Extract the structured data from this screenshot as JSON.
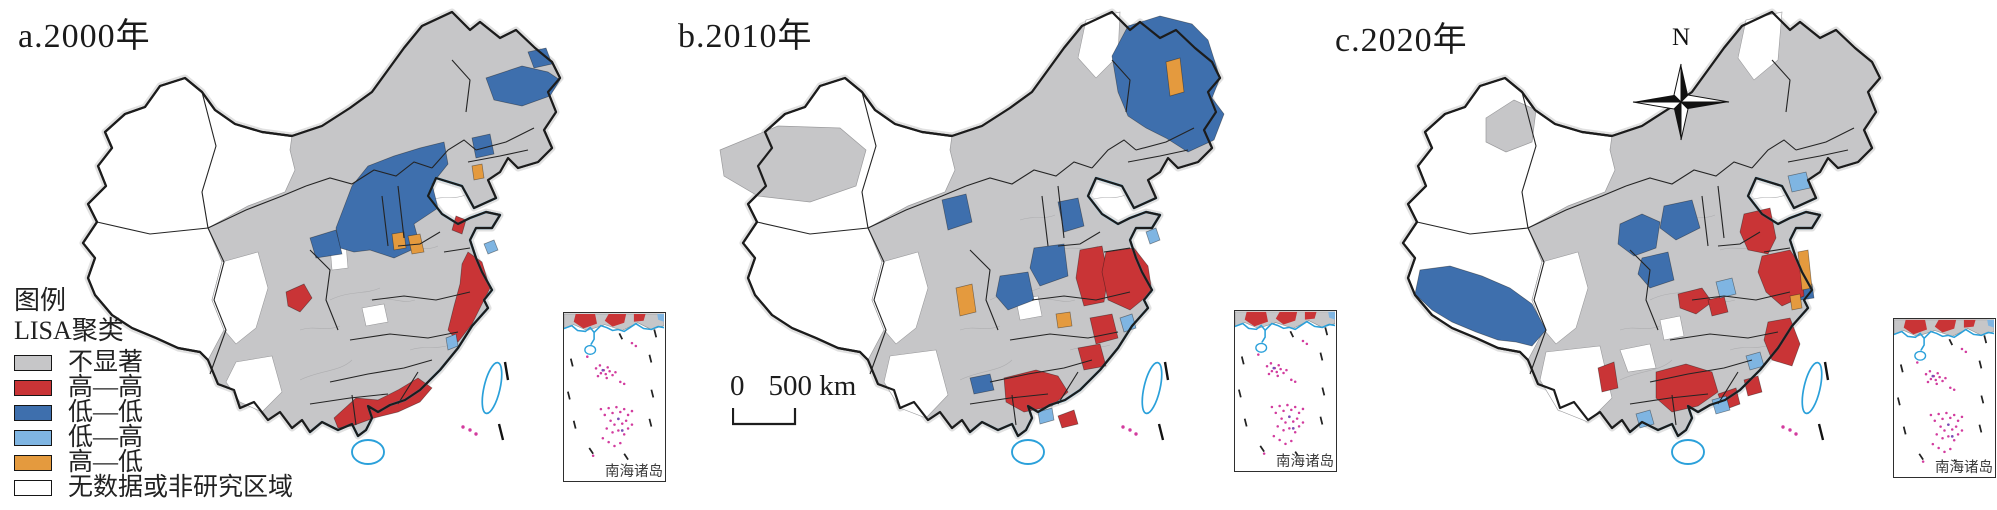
{
  "figure": {
    "panels": [
      {
        "id": "a",
        "title": "a.2000年",
        "cluster_types_present": [
          "不显著",
          "高—高",
          "低—低",
          "低—高",
          "高—低",
          "无数据或非研究区域"
        ]
      },
      {
        "id": "b",
        "title": "b.2010年",
        "cluster_types_present": [
          "不显著",
          "高—高",
          "低—低",
          "低—高",
          "高—低",
          "无数据或非研究区域"
        ]
      },
      {
        "id": "c",
        "title": "c.2020年",
        "cluster_types_present": [
          "不显著",
          "高—高",
          "低—低",
          "低—高",
          "高—低",
          "无数据或非研究区域"
        ]
      }
    ]
  },
  "legend": {
    "title": "图例",
    "subtitle": "LISA聚类",
    "items": [
      {
        "key": "ns",
        "label": "不显著",
        "color": "#c6c6c8"
      },
      {
        "key": "hh",
        "label": "高—高",
        "color": "#c93436"
      },
      {
        "key": "ll",
        "label": "低—低",
        "color": "#3e6fad"
      },
      {
        "key": "lh",
        "label": "低—高",
        "color": "#7fb5e2"
      },
      {
        "key": "hl",
        "label": "高—低",
        "color": "#e49a3e"
      },
      {
        "key": "nodata",
        "label": "无数据或非研究区域",
        "color": "#ffffff"
      }
    ]
  },
  "scale_bar": {
    "zero": "0",
    "distance": "500 km"
  },
  "compass": {
    "label": "N"
  },
  "inset": {
    "label": "南海诸岛"
  },
  "map_colors": {
    "outline": "#1c1c1c",
    "glow": "#c9c9c9",
    "coastline": "#2aa0da",
    "county_line": "#aeaeb0",
    "island_dots": "#d23c9e",
    "island_dots_alt": "#7a4fb5"
  }
}
